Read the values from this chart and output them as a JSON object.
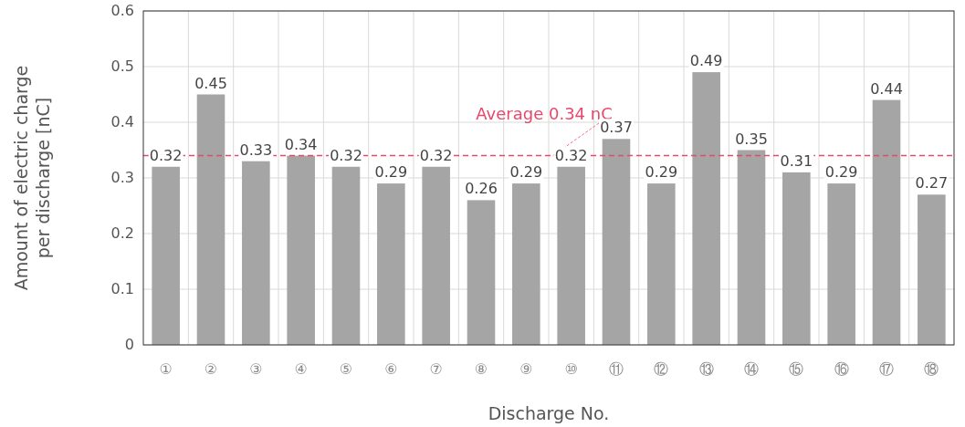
{
  "chart_data": {
    "type": "bar",
    "xlabel": "Discharge No.",
    "ylabel": "Amount of electric charge\nper discharge [nC]",
    "categories": [
      "①",
      "②",
      "③",
      "④",
      "⑤",
      "⑥",
      "⑦",
      "⑧",
      "⑨",
      "⑩",
      "⑪",
      "⑫",
      "⑬",
      "⑭",
      "⑮",
      "⑯",
      "⑰",
      "⑱"
    ],
    "values": [
      0.32,
      0.45,
      0.33,
      0.34,
      0.32,
      0.29,
      0.32,
      0.26,
      0.29,
      0.32,
      0.37,
      0.29,
      0.49,
      0.35,
      0.31,
      0.29,
      0.44,
      0.27
    ],
    "color": "#a5a5a5",
    "data_labels": true,
    "ylim": [
      0,
      0.6
    ],
    "yticks": [
      0,
      0.1,
      0.2,
      0.3,
      0.4,
      0.5,
      0.6
    ],
    "grid": true,
    "ref_lines": [
      {
        "axis": "y",
        "value": 0.34,
        "label": "Average 0.34 nC",
        "color": "#e8486a",
        "line_style": "dashed"
      }
    ]
  }
}
